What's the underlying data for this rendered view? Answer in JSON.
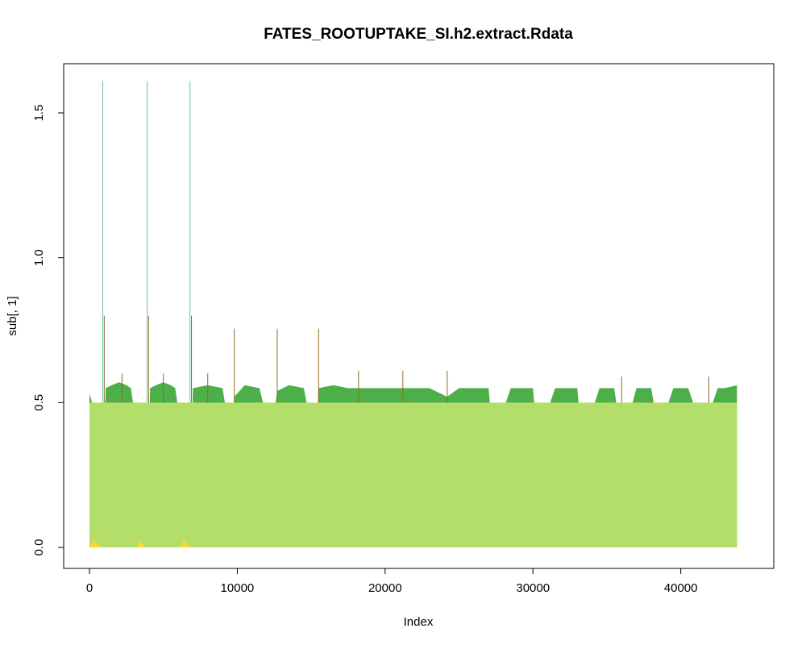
{
  "chart_data": {
    "type": "area",
    "title": "FATES_ROOTUPTAKE_SI.h2.extract.Rdata",
    "xlabel": "Index",
    "ylabel": "sub[, 1]",
    "xlim": [
      0,
      44000
    ],
    "ylim": [
      -0.05,
      1.65
    ],
    "x_ticks": [
      0,
      10000,
      20000,
      30000,
      40000
    ],
    "x_tick_labels": [
      "0",
      "10000",
      "20000",
      "30000",
      "40000"
    ],
    "y_ticks": [
      0.0,
      0.5,
      1.0,
      1.5
    ],
    "y_tick_labels": [
      "0.0",
      "0.5",
      "1.0",
      "1.5"
    ],
    "grid": false,
    "legend": "none",
    "series": [
      {
        "color": "#4daf4a",
        "x": [
          0,
          300,
          600,
          800,
          900,
          1100,
          1500,
          2000,
          2500,
          2800,
          3000,
          3200,
          3500,
          3800,
          3900,
          4100,
          4500,
          5000,
          5500,
          5800,
          6000,
          6200,
          6500,
          6700,
          6800,
          7000,
          8000,
          9000,
          9600,
          9800,
          10500,
          11500,
          12300,
          12700,
          13500,
          14500,
          15300,
          15500,
          16500,
          17500,
          18500,
          20000,
          21000,
          22000,
          23000,
          24200,
          25000,
          26000,
          27000,
          27300,
          28500,
          29500,
          30000,
          30300,
          31500,
          32500,
          33000,
          33300,
          34500,
          35500,
          36000,
          37000,
          38000,
          38500,
          39500,
          40500,
          41500,
          42500,
          43000,
          43800
        ],
        "values": [
          0.53,
          0.48,
          0.32,
          0.16,
          0.12,
          0.55,
          0.56,
          0.57,
          0.56,
          0.55,
          0.48,
          0.38,
          0.26,
          0.15,
          0.12,
          0.55,
          0.56,
          0.57,
          0.56,
          0.55,
          0.48,
          0.38,
          0.26,
          0.15,
          0.12,
          0.55,
          0.56,
          0.55,
          0.36,
          0.52,
          0.56,
          0.55,
          0.38,
          0.54,
          0.56,
          0.55,
          0.34,
          0.55,
          0.56,
          0.55,
          0.55,
          0.55,
          0.55,
          0.55,
          0.55,
          0.52,
          0.55,
          0.55,
          0.55,
          0.37,
          0.55,
          0.55,
          0.55,
          0.37,
          0.55,
          0.55,
          0.55,
          0.36,
          0.55,
          0.55,
          0.36,
          0.55,
          0.55,
          0.4,
          0.55,
          0.55,
          0.4,
          0.55,
          0.55,
          0.56
        ]
      },
      {
        "color": "#b3de69",
        "x": [
          0,
          43800
        ],
        "values": [
          0.5,
          0.5
        ]
      },
      {
        "color": "#fdd835",
        "x": [
          0,
          300,
          800,
          3200,
          3400,
          3800,
          6100,
          6400,
          6800
        ],
        "values": [
          0.0,
          0.025,
          0.0,
          0.0,
          0.025,
          0.0,
          0.0,
          0.025,
          0.0
        ]
      }
    ],
    "spikes": [
      {
        "color": "#66c2a5",
        "x": [
          900,
          3900,
          6800
        ],
        "values": [
          1.61,
          1.61,
          1.61
        ]
      },
      {
        "color": "#8c6d1f",
        "x": [
          1000,
          4000,
          6900,
          9800,
          12700,
          15500
        ],
        "values": [
          0.8,
          0.8,
          0.8,
          0.755,
          0.755,
          0.755
        ]
      },
      {
        "color": "#8c6d1f",
        "x": [
          2200,
          5000,
          8000,
          18200,
          21200,
          24200,
          36000,
          41900
        ],
        "values": [
          0.6,
          0.6,
          0.6,
          0.61,
          0.61,
          0.61,
          0.59,
          0.59
        ]
      }
    ]
  }
}
